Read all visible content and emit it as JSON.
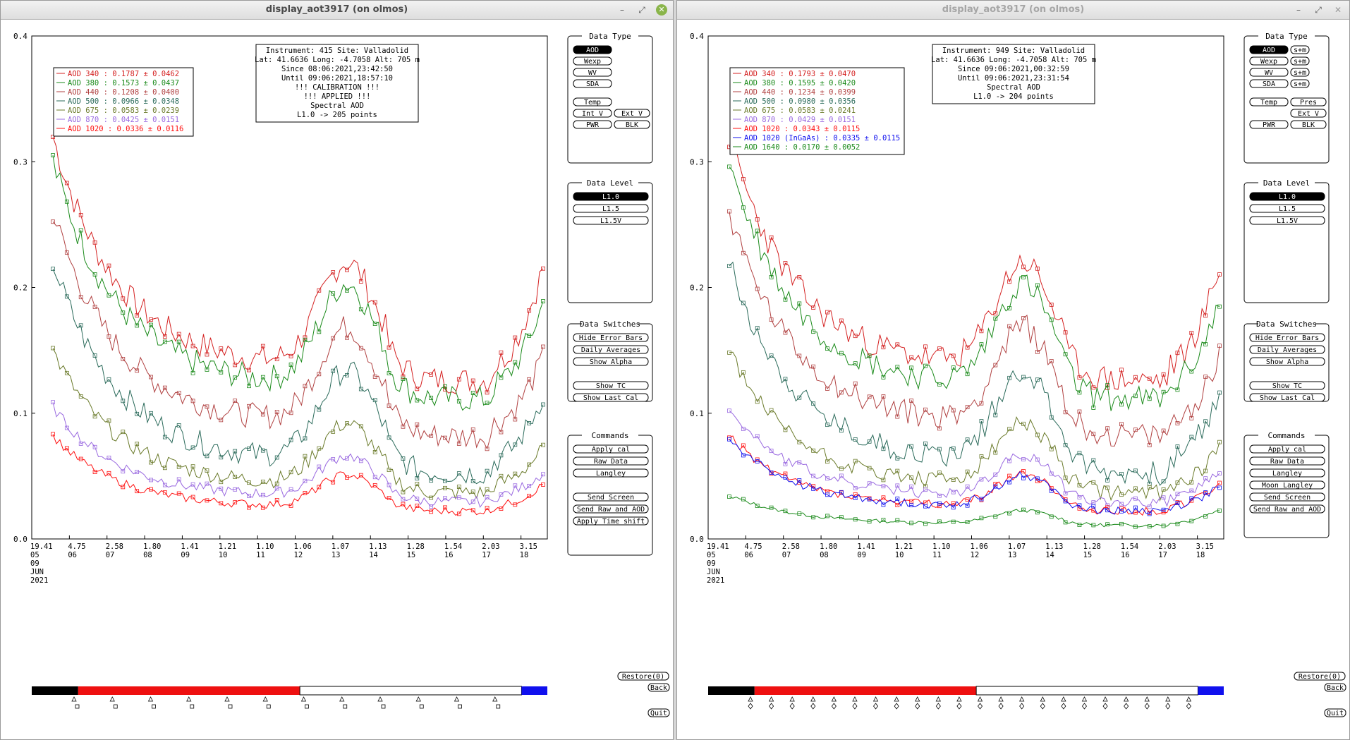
{
  "windows": [
    {
      "title": "display_aot3917 (on olmos)",
      "info": [
        "Instrument: 415 Site: Valladolid",
        "Lat: 41.6636 Long: -4.7058 Alt: 705 m",
        "Since 08:06:2021,23:42:50",
        "Until 09:06:2021,18:57:10",
        "!!! CALIBRATION !!!",
        "!!!   APPLIED   !!!",
        "Spectral AOD",
        "L1.0 -> 205 points"
      ],
      "legend": [
        "AOD 340   : 0.1787 ± 0.0462",
        "AOD 380   : 0.1573 ± 0.0437",
        "AOD 440   : 0.1208 ± 0.0400",
        "AOD 500   : 0.0966 ± 0.0348",
        "AOD 675   : 0.0583 ± 0.0239",
        "AOD 870   : 0.0425 ± 0.0151",
        "AOD 1020   : 0.0336 ± 0.0116"
      ],
      "legend_colors": [
        "#d42020",
        "#1a8a1a",
        "#b04040",
        "#2a6a5a",
        "#6a7a2a",
        "#9a6ae0",
        "#ff1010"
      ],
      "data_type": {
        "title": "Data Type",
        "buttons": [
          [
            "AOD"
          ],
          [
            "Wexp"
          ],
          [
            "WV"
          ],
          [
            "SDA"
          ],
          [
            "Temp"
          ],
          [
            "Int V",
            "Ext V"
          ],
          [
            "PWR",
            "BLK"
          ]
        ]
      },
      "data_level": {
        "title": "Data Level",
        "buttons": [
          "L1.0",
          "L1.5",
          "L1.5V"
        ]
      },
      "data_switches": {
        "title": "Data Switches",
        "buttons": [
          "Hide Error Bars",
          "Daily Averages",
          "Show Alpha",
          "",
          "Show TC",
          "Show Last Cal"
        ]
      },
      "commands": {
        "title": "Commands",
        "buttons": [
          "Apply cal",
          "Raw Data",
          "Langley",
          "",
          "Send Screen",
          "Send Raw and AOD",
          "Apply Time shift"
        ]
      },
      "markers_tri": 12,
      "markers_sq": 12
    },
    {
      "title": "display_aot3917 (on olmos)",
      "info": [
        "Instrument: 949 Site: Valladolid",
        "Lat: 41.6636 Long: -4.7058 Alt: 705 m",
        "Since 09:06:2021,00:32:59",
        "Until 09:06:2021,23:31:54",
        "Spectral AOD",
        "L1.0 -> 204 points"
      ],
      "legend": [
        "AOD 340   : 0.1793 ± 0.0470",
        "AOD 380   : 0.1595 ± 0.0420",
        "AOD 440   : 0.1234 ± 0.0399",
        "AOD 500   : 0.0980 ± 0.0356",
        "AOD 675   : 0.0583 ± 0.0241",
        "AOD 870   : 0.0429 ± 0.0151",
        "AOD 1020   : 0.0343 ± 0.0115",
        "AOD 1020 (InGaAs)   : 0.0335 ± 0.0115",
        "AOD 1640   : 0.0170 ± 0.0052"
      ],
      "legend_colors": [
        "#d42020",
        "#1a8a1a",
        "#b04040",
        "#2a6a5a",
        "#6a7a2a",
        "#9a6ae0",
        "#ff1010",
        "#1010ee",
        "#1a8a1a"
      ],
      "data_type": {
        "title": "Data Type",
        "buttons": [
          [
            "AOD",
            "s+m"
          ],
          [
            "Wexp",
            "s+m"
          ],
          [
            "WV",
            "s+m"
          ],
          [
            "SDA",
            "s+m"
          ],
          [
            "Temp",
            "Pres"
          ],
          [
            "",
            "Ext V"
          ],
          [
            "PWR",
            "BLK"
          ]
        ]
      },
      "data_level": {
        "title": "Data Level",
        "buttons": [
          "L1.0",
          "L1.5",
          "L1.5V"
        ]
      },
      "data_switches": {
        "title": "Data Switches",
        "buttons": [
          "Hide Error Bars",
          "Daily Averages",
          "Show Alpha",
          "",
          "Show TC",
          "Show Last Cal"
        ]
      },
      "commands": {
        "title": "Commands",
        "buttons": [
          "Apply cal",
          "Raw Data",
          "Langley",
          "Moon Langley",
          "Send Screen",
          "Send Raw and AOD"
        ]
      },
      "markers_tri": 22,
      "markers_sq": 22
    }
  ],
  "chart_data": {
    "type": "line",
    "ylim": [
      0.0,
      0.4
    ],
    "yticks": [
      "0.4",
      "0.3",
      "0.2",
      "0.1",
      "0.0"
    ],
    "xtick_top": [
      "19.41",
      "4.75",
      "2.58",
      "1.80",
      "1.41",
      "1.21",
      "1.10",
      "1.06",
      "1.07",
      "1.13",
      "1.28",
      "1.54",
      "2.03",
      "3.15"
    ],
    "xtick_bottom": [
      "05",
      "06",
      "07",
      "08",
      "09",
      "10",
      "11",
      "12",
      "13",
      "14",
      "15",
      "16",
      "17",
      "18"
    ],
    "x_extra": [
      "09",
      "JUN",
      "2021"
    ],
    "series_peaks_approx": {
      "AOD 340": 0.32,
      "AOD 1020": 0.08
    },
    "time_bar": {
      "black_fraction": 0.09,
      "red_end_fraction": 0.52,
      "blue_start_fraction": 0.95
    }
  },
  "buttons": {
    "restore": "Restore(0)",
    "back": "Back",
    "quit": "Quit"
  },
  "colors": {
    "selected": "#000000",
    "panel_border": "#000000"
  }
}
